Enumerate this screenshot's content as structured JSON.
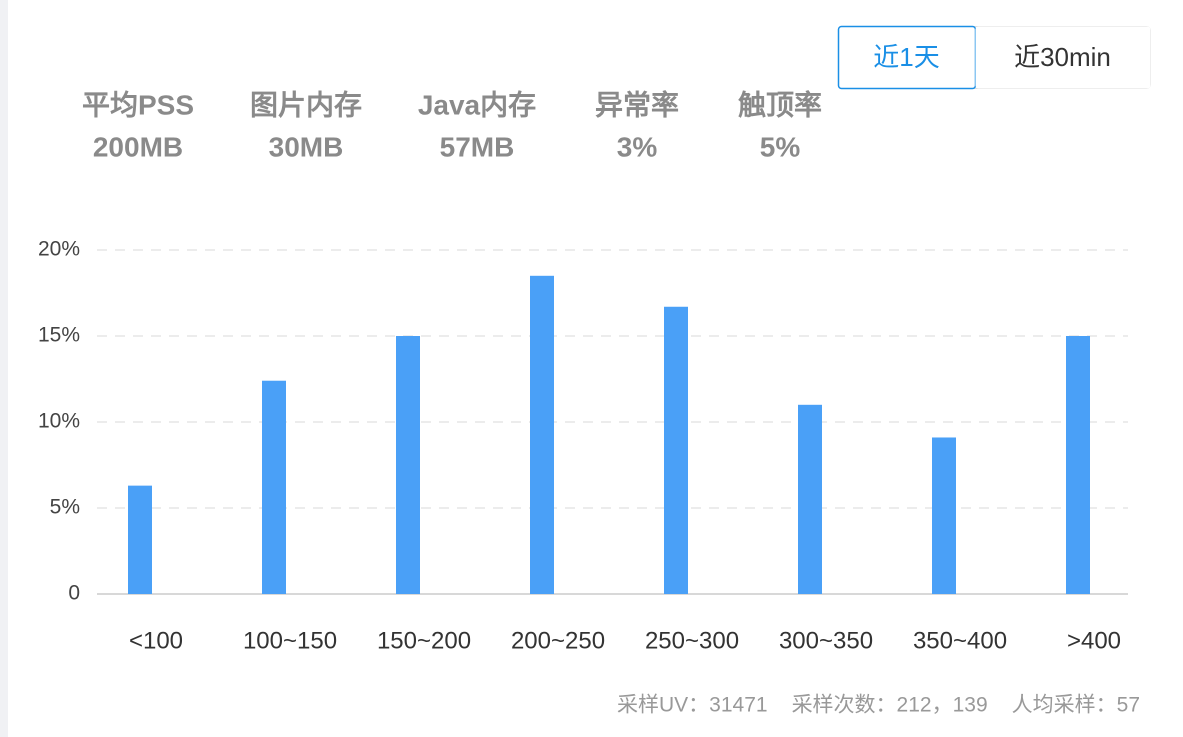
{
  "tabs": [
    {
      "label": "近1天",
      "active": true
    },
    {
      "label": "近30min",
      "active": false
    }
  ],
  "stats": [
    {
      "label": "平均PSS",
      "value": "200MB"
    },
    {
      "label": "图片内存",
      "value": "30MB"
    },
    {
      "label": "Java内存",
      "value": "57MB"
    },
    {
      "label": "异常率",
      "value": "3%"
    },
    {
      "label": "触顶率",
      "value": "5%"
    }
  ],
  "chart_data": {
    "type": "bar",
    "categories": [
      "<100",
      "100~150",
      "150~200",
      "200~250",
      "250~300",
      "300~350",
      "350~400",
      ">400"
    ],
    "values": [
      6.3,
      12.4,
      15,
      18.5,
      16.7,
      11,
      9.1,
      15
    ],
    "color": "#4aa0f7",
    "ylim": [
      0,
      20
    ],
    "yticks": [
      0,
      {
        "value": 5,
        "label": "5%"
      },
      {
        "value": 10,
        "label": "10%"
      },
      {
        "value": 15,
        "label": "15%"
      },
      {
        "value": 20,
        "label": "20%"
      }
    ],
    "grid": true
  },
  "footer": [
    "采样UV：31471",
    "采样次数：212，139",
    "人均采样：57"
  ]
}
